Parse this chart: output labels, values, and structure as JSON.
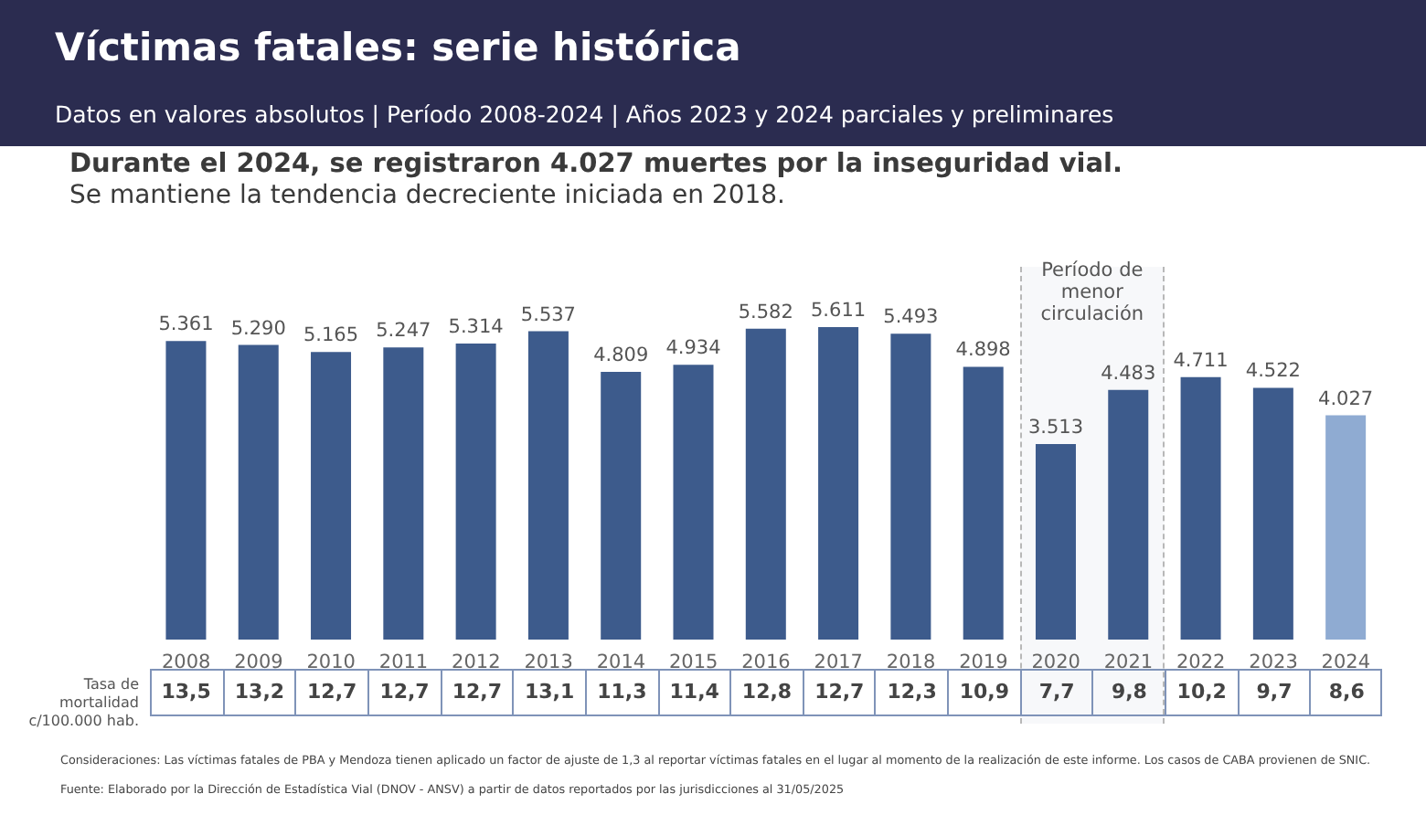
{
  "chart_data": {
    "type": "bar",
    "title": "Víctimas fatales: serie histórica",
    "subtitle": "Datos en valores absolutos | Período 2008-2024 | Años 2023 y 2024 parciales y preliminares",
    "categories": [
      "2008",
      "2009",
      "2010",
      "2011",
      "2012",
      "2013",
      "2014",
      "2015",
      "2016",
      "2017",
      "2018",
      "2019",
      "2020",
      "2021",
      "2022",
      "2023",
      "2024"
    ],
    "values": [
      5361,
      5290,
      5165,
      5247,
      5314,
      5537,
      4809,
      4934,
      5582,
      5611,
      5493,
      4898,
      3513,
      4483,
      4711,
      4522,
      4027
    ],
    "value_labels": [
      "5.361",
      "5.290",
      "5.165",
      "5.247",
      "5.314",
      "5.537",
      "4.809",
      "4.934",
      "5.582",
      "5.611",
      "5.493",
      "4.898",
      "3.513",
      "4.483",
      "4.711",
      "4.522",
      "4.027"
    ],
    "colors": [
      "#3d5b8c",
      "#3d5b8c",
      "#3d5b8c",
      "#3d5b8c",
      "#3d5b8c",
      "#3d5b8c",
      "#3d5b8c",
      "#3d5b8c",
      "#3d5b8c",
      "#3d5b8c",
      "#3d5b8c",
      "#3d5b8c",
      "#3d5b8c",
      "#3d5b8c",
      "#3d5b8c",
      "#3d5b8c",
      "#8fabd2"
    ],
    "bands": [
      {
        "axis": "x",
        "from": "2020",
        "to": "2021",
        "label": "Período de menor circulación"
      }
    ],
    "grid": false,
    "legend": false,
    "annotations": [
      "Durante el 2024, se registraron 4.027 muertes por la inseguridad vial.",
      "Se mantiene la tendencia decreciente iniciada en 2018.",
      "Tasa de mortalidad c/100.000 hab.",
      "Consideraciones: Las víctimas fatales de PBA y Mendoza tienen aplicado un factor de ajuste de 1,3 al reportar víctimas fatales en el lugar al momento de la realización de este informe. Los casos de CABA provienen de SNIC.",
      "Fuente: Elaborado por la Dirección de Estadística Vial (DNOV - ANSV) a partir de datos reportados por las jurisdicciones al 31/05/2025",
      "13,5",
      "13,2",
      "12,7",
      "12,7",
      "12,7",
      "13,1",
      "11,3",
      "11,4",
      "12,8",
      "12,7",
      "12,3",
      "10,9",
      "7,7",
      "9,8",
      "10,2",
      "9,7",
      "8,6"
    ]
  }
}
